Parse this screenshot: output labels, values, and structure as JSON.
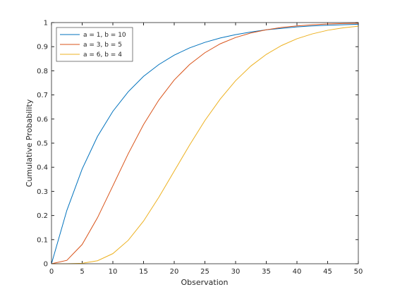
{
  "chart_data": {
    "type": "line",
    "xlabel": "Observation",
    "ylabel": "Cumulative Probability",
    "x": [
      0,
      2.5,
      5,
      7.5,
      10,
      12.5,
      15,
      17.5,
      20,
      22.5,
      25,
      27.5,
      30,
      32.5,
      35,
      37.5,
      40,
      42.5,
      45,
      47.5,
      50
    ],
    "series": [
      {
        "name": "a = 1, b = 10",
        "color": "#0072bd",
        "values": [
          0,
          0.221,
          0.393,
          0.528,
          0.632,
          0.713,
          0.777,
          0.826,
          0.865,
          0.895,
          0.918,
          0.936,
          0.95,
          0.961,
          0.97,
          0.976,
          0.982,
          0.986,
          0.989,
          0.991,
          0.993
        ]
      },
      {
        "name": "a = 3, b = 5",
        "color": "#d95319",
        "values": [
          0,
          0.014,
          0.08,
          0.191,
          0.323,
          0.456,
          0.577,
          0.679,
          0.762,
          0.826,
          0.875,
          0.912,
          0.938,
          0.957,
          0.97,
          0.98,
          0.986,
          0.991,
          0.994,
          0.996,
          0.997
        ]
      },
      {
        "name": "a = 6, b = 4",
        "color": "#edb120",
        "values": [
          0,
          0,
          0.002,
          0.0125,
          0.042,
          0.097,
          0.177,
          0.276,
          0.384,
          0.492,
          0.594,
          0.683,
          0.759,
          0.82,
          0.868,
          0.905,
          0.933,
          0.953,
          0.968,
          0.978,
          0.985
        ]
      }
    ],
    "xlim": [
      0,
      50
    ],
    "xticks": [
      0,
      5,
      10,
      15,
      20,
      25,
      30,
      35,
      40,
      45,
      50
    ],
    "ylim": [
      0,
      1
    ],
    "yticks": [
      0,
      0.1,
      0.2,
      0.3,
      0.4,
      0.5,
      0.6,
      0.7,
      0.8,
      0.9,
      1
    ],
    "legend": "northwest",
    "grid": false
  }
}
